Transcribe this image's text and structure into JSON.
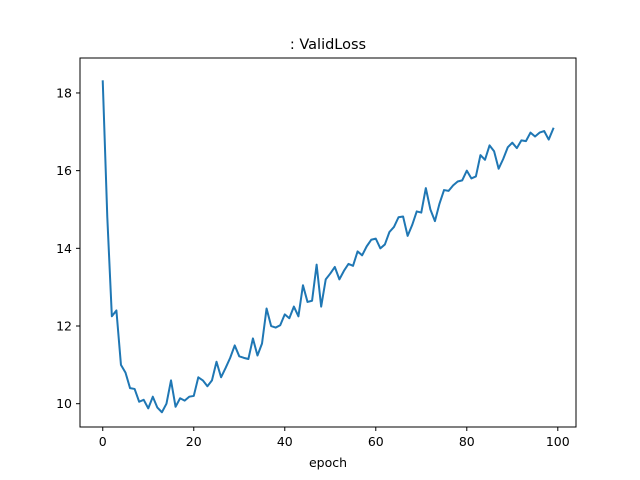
{
  "chart_data": {
    "type": "line",
    "title": ": ValidLoss",
    "xlabel": "epoch",
    "ylabel": "",
    "xlim": [
      -5,
      104
    ],
    "ylim": [
      9.4,
      18.9
    ],
    "xticks": [
      0,
      20,
      40,
      60,
      80,
      100
    ],
    "yticks": [
      10,
      12,
      14,
      16,
      18
    ],
    "grid": false,
    "series": [
      {
        "color": "#1f77b4",
        "x": [
          0,
          1,
          2,
          3,
          4,
          5,
          6,
          7,
          8,
          9,
          10,
          11,
          12,
          13,
          14,
          15,
          16,
          17,
          18,
          19,
          20,
          21,
          22,
          23,
          24,
          25,
          26,
          27,
          28,
          29,
          30,
          31,
          32,
          33,
          34,
          35,
          36,
          37,
          38,
          39,
          40,
          41,
          42,
          43,
          44,
          45,
          46,
          47,
          48,
          49,
          50,
          51,
          52,
          53,
          54,
          55,
          56,
          57,
          58,
          59,
          60,
          61,
          62,
          63,
          64,
          65,
          66,
          67,
          68,
          69,
          70,
          71,
          72,
          73,
          74,
          75,
          76,
          77,
          78,
          79,
          80,
          81,
          82,
          83,
          84,
          85,
          86,
          87,
          88,
          89,
          90,
          91,
          92,
          93,
          94,
          95,
          96,
          97,
          98,
          99
        ],
        "values": [
          18.3,
          14.8,
          12.25,
          12.4,
          11.0,
          10.8,
          10.4,
          10.38,
          10.05,
          10.1,
          9.88,
          10.18,
          9.9,
          9.78,
          10.0,
          10.6,
          9.92,
          10.14,
          10.08,
          10.18,
          10.2,
          10.68,
          10.6,
          10.45,
          10.6,
          11.08,
          10.68,
          10.92,
          11.18,
          11.5,
          11.22,
          11.18,
          11.15,
          11.68,
          11.24,
          11.55,
          12.45,
          12.0,
          11.96,
          12.02,
          12.3,
          12.2,
          12.5,
          12.25,
          13.05,
          12.62,
          12.65,
          13.58,
          12.5,
          13.2,
          13.35,
          13.52,
          13.2,
          13.42,
          13.6,
          13.55,
          13.92,
          13.82,
          14.05,
          14.22,
          14.25,
          14.0,
          14.1,
          14.42,
          14.55,
          14.8,
          14.82,
          14.32,
          14.6,
          14.95,
          14.92,
          15.55,
          15.0,
          14.7,
          15.15,
          15.5,
          15.48,
          15.62,
          15.72,
          15.75,
          16.0,
          15.8,
          15.85,
          16.4,
          16.28,
          16.65,
          16.5,
          16.05,
          16.3,
          16.6,
          16.72,
          16.58,
          16.78,
          16.76,
          16.98,
          16.88,
          16.98,
          17.02,
          16.8,
          17.08
        ]
      }
    ]
  }
}
